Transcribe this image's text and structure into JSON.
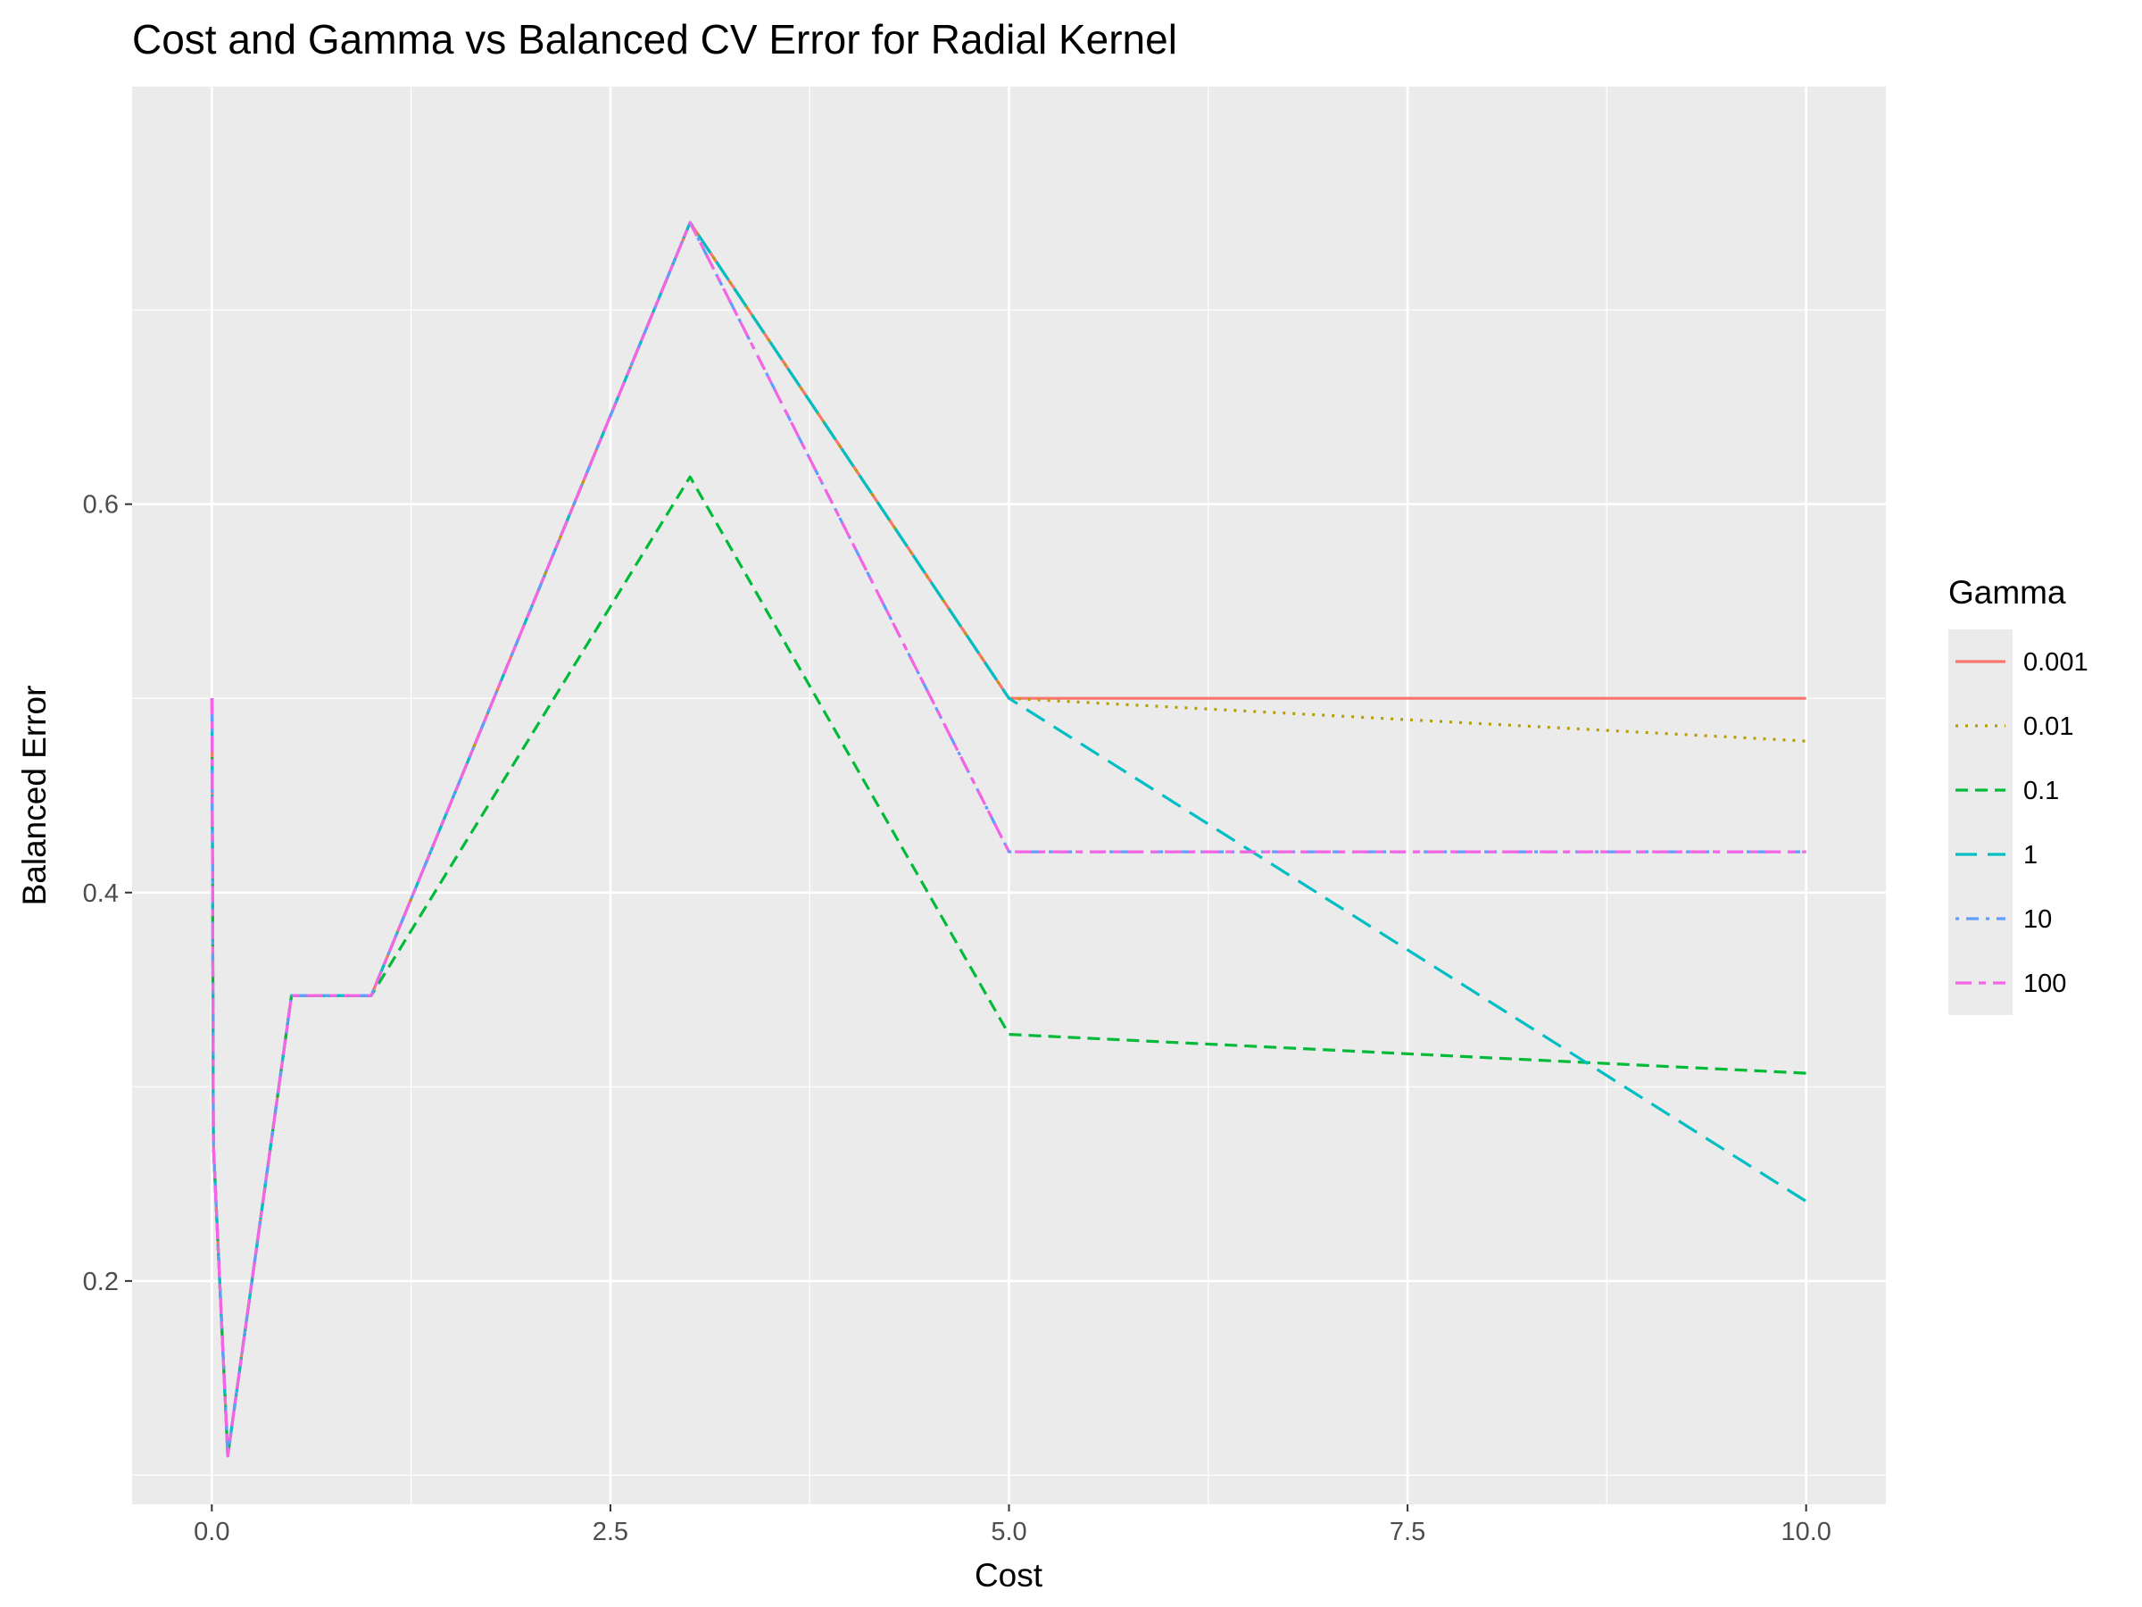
{
  "chart_data": {
    "type": "line",
    "title": "Cost and Gamma vs Balanced CV Error for Radial Kernel",
    "xlabel": "Cost",
    "ylabel": "Balanced Error",
    "xlim": [
      -0.5,
      10.5
    ],
    "ylim": [
      0.085,
      0.815
    ],
    "x_ticks": [
      0,
      2.5,
      5,
      7.5,
      10
    ],
    "x_tick_labels": [
      "0.0",
      "2.5",
      "5.0",
      "7.5",
      "10.0"
    ],
    "y_ticks": [
      0.2,
      0.4,
      0.6
    ],
    "y_tick_labels": [
      "0.2",
      "0.4",
      "0.6"
    ],
    "grid": true,
    "legend": {
      "title": "Gamma",
      "position": "right"
    },
    "x": [
      0.001,
      0.01,
      0.1,
      0.5,
      1,
      3,
      5,
      10
    ],
    "series": [
      {
        "name": "0.001",
        "color": "#F8766D",
        "dash": "solid",
        "values": [
          0.5,
          0.27,
          0.11,
          0.347,
          0.347,
          0.745,
          0.5,
          0.5
        ]
      },
      {
        "name": "0.01",
        "color": "#B79F00",
        "dash": "dotted",
        "values": [
          0.5,
          0.27,
          0.11,
          0.347,
          0.347,
          0.745,
          0.5,
          0.478
        ]
      },
      {
        "name": "0.1",
        "color": "#00BA38",
        "dash": "dashed",
        "values": [
          0.5,
          0.27,
          0.11,
          0.347,
          0.347,
          0.614,
          0.327,
          0.307
        ]
      },
      {
        "name": "1",
        "color": "#00BFC4",
        "dash": "longdash",
        "values": [
          0.5,
          0.27,
          0.11,
          0.347,
          0.347,
          0.745,
          0.5,
          0.241
        ]
      },
      {
        "name": "10",
        "color": "#619CFF",
        "dash": "dotdash",
        "values": [
          0.5,
          0.27,
          0.11,
          0.347,
          0.347,
          0.745,
          0.421,
          0.421
        ]
      },
      {
        "name": "100",
        "color": "#F564E3",
        "dash": "twodash",
        "values": [
          0.5,
          0.27,
          0.11,
          0.347,
          0.347,
          0.745,
          0.421,
          0.421
        ]
      }
    ]
  }
}
